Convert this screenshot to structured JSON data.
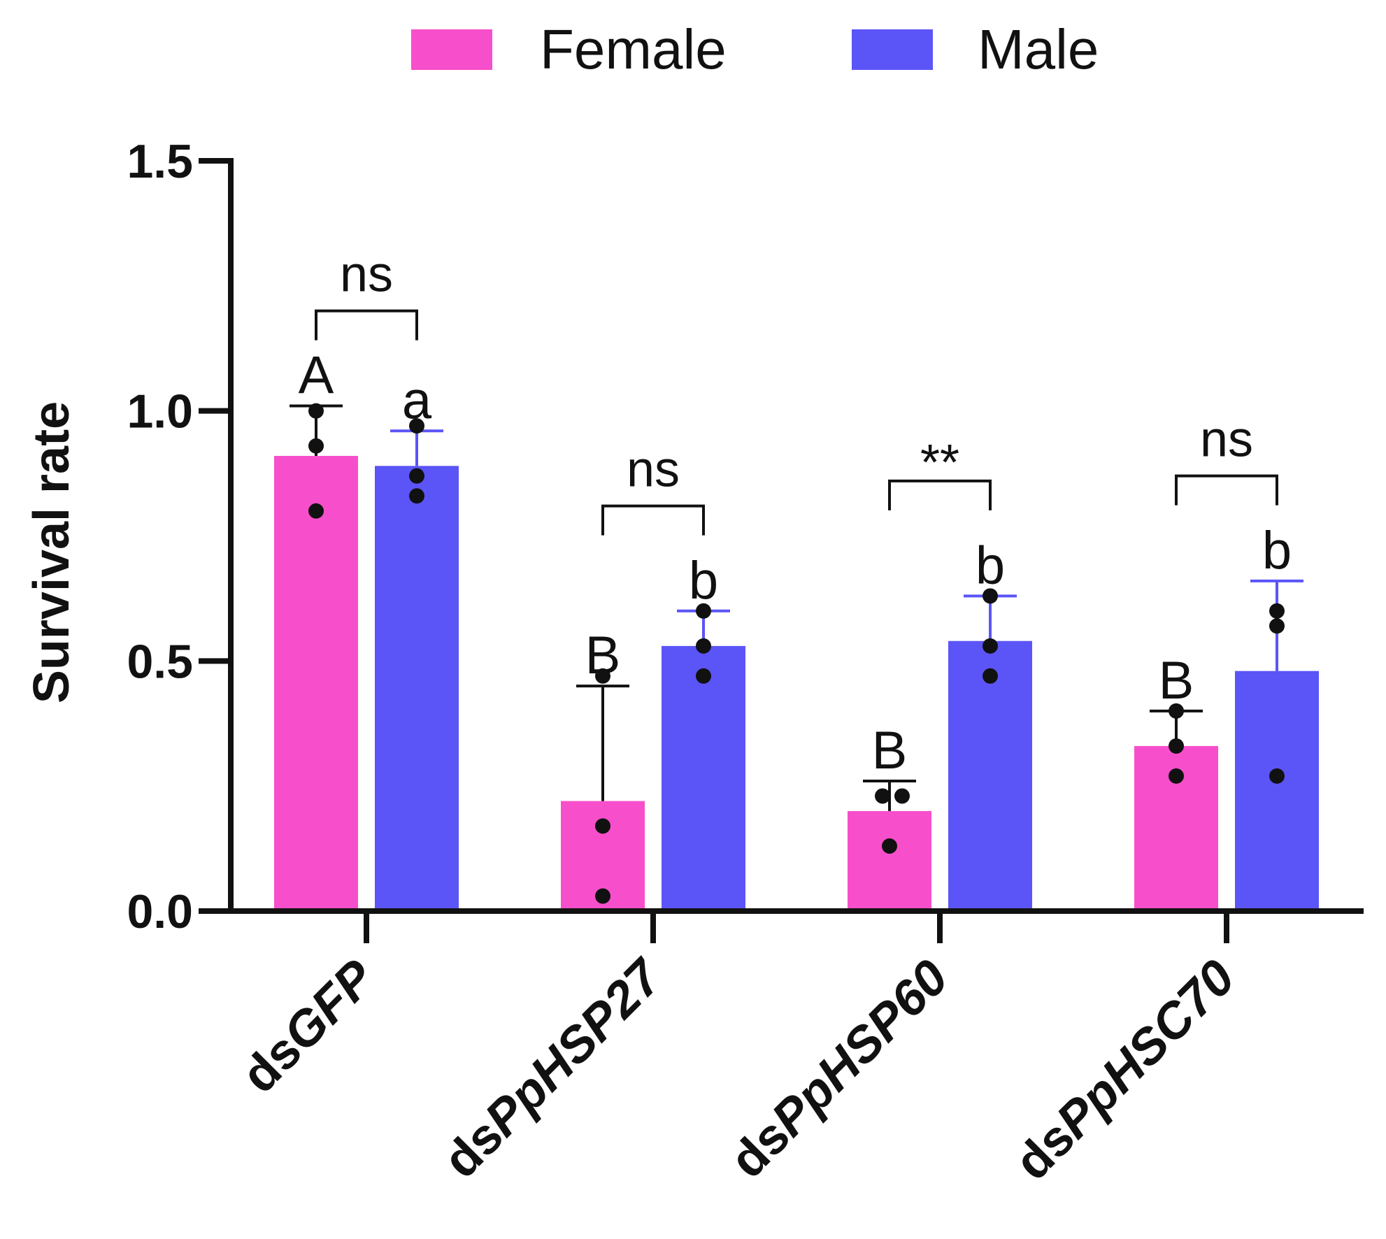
{
  "chart_data": {
    "type": "bar",
    "title": "",
    "xlabel": "",
    "ylabel": "Survival rate",
    "ylim": [
      0,
      1.5
    ],
    "yticks": [
      "0.0",
      "0.5",
      "1.0",
      "1.5"
    ],
    "ytick_values": [
      0,
      0.5,
      1.0,
      1.5
    ],
    "legend_position": "top-center",
    "categories": [
      {
        "prefix": "ds",
        "gene": "GFP"
      },
      {
        "prefix": "ds",
        "gene": "PpHSP27"
      },
      {
        "prefix": "ds",
        "gene": "PpHSP60"
      },
      {
        "prefix": "ds",
        "gene": "PpHSC70"
      }
    ],
    "series": [
      {
        "name": "Female",
        "color": "#F74FCB",
        "errorColor": "#111111",
        "values": [
          0.91,
          0.22,
          0.2,
          0.33
        ],
        "errors": [
          0.1,
          0.23,
          0.06,
          0.07
        ],
        "points": [
          [
            1.0,
            0.93,
            0.8
          ],
          [
            0.47,
            0.17,
            0.03
          ],
          [
            0.23,
            0.23,
            0.13
          ],
          [
            0.4,
            0.33,
            0.27
          ]
        ],
        "letters": [
          "A",
          "B",
          "B",
          "B"
        ]
      },
      {
        "name": "Male",
        "color": "#5B55F7",
        "errorColor": "#5B55F7",
        "values": [
          0.89,
          0.53,
          0.54,
          0.48
        ],
        "errors": [
          0.07,
          0.07,
          0.09,
          0.18
        ],
        "points": [
          [
            0.97,
            0.87,
            0.83
          ],
          [
            0.6,
            0.53,
            0.47
          ],
          [
            0.63,
            0.53,
            0.47
          ],
          [
            0.6,
            0.57,
            0.27
          ]
        ],
        "letters": [
          "a",
          "b",
          "b",
          "b"
        ]
      }
    ],
    "comparisons": [
      {
        "category": 0,
        "label": "ns",
        "bracket_y": 1.2
      },
      {
        "category": 1,
        "label": "ns",
        "bracket_y": 0.81
      },
      {
        "category": 2,
        "label": "**",
        "bracket_y": 0.86
      },
      {
        "category": 3,
        "label": "ns",
        "bracket_y": 0.87
      }
    ]
  }
}
